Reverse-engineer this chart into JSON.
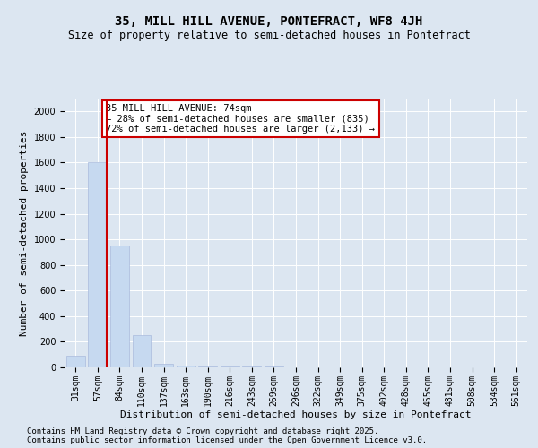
{
  "title": "35, MILL HILL AVENUE, PONTEFRACT, WF8 4JH",
  "subtitle": "Size of property relative to semi-detached houses in Pontefract",
  "xlabel": "Distribution of semi-detached houses by size in Pontefract",
  "ylabel": "Number of semi-detached properties",
  "bar_labels": [
    "31sqm",
    "57sqm",
    "84sqm",
    "110sqm",
    "137sqm",
    "163sqm",
    "190sqm",
    "216sqm",
    "243sqm",
    "269sqm",
    "296sqm",
    "322sqm",
    "349sqm",
    "375sqm",
    "402sqm",
    "428sqm",
    "455sqm",
    "481sqm",
    "508sqm",
    "534sqm",
    "561sqm"
  ],
  "bar_values": [
    90,
    1600,
    950,
    255,
    25,
    15,
    10,
    8,
    5,
    4,
    3,
    3,
    2,
    2,
    2,
    1,
    1,
    1,
    1,
    1,
    1
  ],
  "bar_color": "#c6d9f0",
  "bar_edge_color": "#aabbdd",
  "property_line_index": 1,
  "annotation_title": "35 MILL HILL AVENUE: 74sqm",
  "annotation_line1": "← 28% of semi-detached houses are smaller (835)",
  "annotation_line2": "72% of semi-detached houses are larger (2,133) →",
  "annotation_box_color": "#ffffff",
  "annotation_box_edge": "#cc0000",
  "vline_color": "#cc0000",
  "ylim": [
    0,
    2100
  ],
  "yticks": [
    0,
    200,
    400,
    600,
    800,
    1000,
    1200,
    1400,
    1600,
    1800,
    2000
  ],
  "footnote1": "Contains HM Land Registry data © Crown copyright and database right 2025.",
  "footnote2": "Contains public sector information licensed under the Open Government Licence v3.0.",
  "bg_color": "#dce6f1",
  "plot_bg_color": "#dce6f1",
  "title_fontsize": 10,
  "subtitle_fontsize": 8.5,
  "tick_fontsize": 7,
  "label_fontsize": 8,
  "annotation_fontsize": 7.5,
  "footnote_fontsize": 6.5
}
